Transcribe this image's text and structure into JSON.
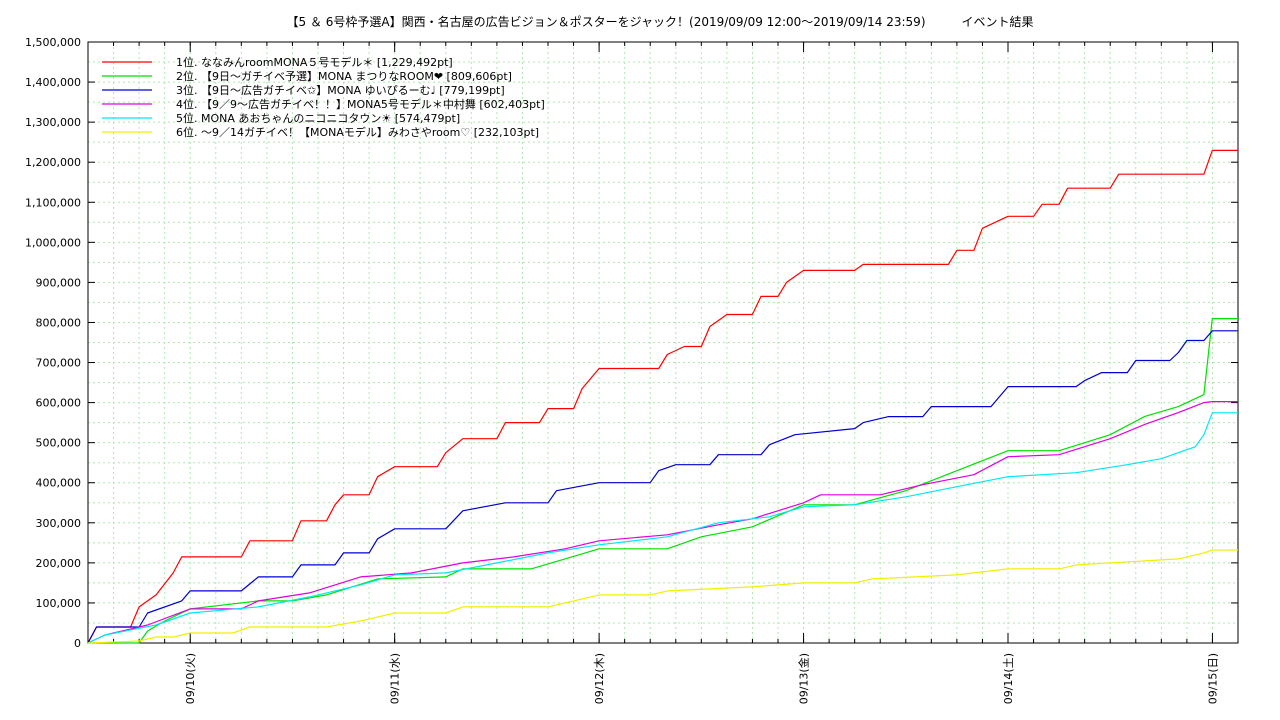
{
  "chart_data": {
    "type": "line",
    "title": "【5 ＆ 6号枠予選A】関西・名古屋の広告ビジョン＆ポスターをジャック！(2019/09/09 12:00〜2019/09/14 23:59)　　　イベント結果",
    "xlabel": "",
    "ylabel": "",
    "x_start": "2019/09/09 12:00",
    "x_end": "2019/09/15 03:00",
    "xtick_labels": [
      {
        "label": "09/10(火)",
        "x": "2019/09/10 00:00"
      },
      {
        "label": "09/11(水)",
        "x": "2019/09/11 00:00"
      },
      {
        "label": "09/12(木)",
        "x": "2019/09/12 00:00"
      },
      {
        "label": "09/13(金)",
        "x": "2019/09/13 00:00"
      },
      {
        "label": "09/14(土)",
        "x": "2019/09/14 00:00"
      },
      {
        "label": "09/15(日)",
        "x": "2019/09/15 00:00"
      }
    ],
    "ylim": [
      0,
      1500000
    ],
    "yticks": [
      0,
      100000,
      200000,
      300000,
      400000,
      500000,
      600000,
      700000,
      800000,
      900000,
      1000000,
      1100000,
      1200000,
      1300000,
      1400000,
      1500000
    ],
    "ytick_labels": [
      "0",
      "100,000",
      "200,000",
      "300,000",
      "400,000",
      "500,000",
      "600,000",
      "700,000",
      "800,000",
      "900,000",
      "1,000,000",
      "1,100,000",
      "1,200,000",
      "1,300,000",
      "1,400,000",
      "1,500,000"
    ],
    "grid": true,
    "legend_position": "top-left",
    "series": [
      {
        "name": "1位. ななみんroomMONA５号モデル＊ [1,229,492pt]",
        "color": "#ff0000",
        "points": [
          [
            "2019/09/09 12:00",
            0
          ],
          [
            "2019/09/09 13:00",
            40000
          ],
          [
            "2019/09/09 17:00",
            40000
          ],
          [
            "2019/09/09 18:00",
            90000
          ],
          [
            "2019/09/09 20:00",
            120000
          ],
          [
            "2019/09/09 22:00",
            175000
          ],
          [
            "2019/09/09 23:00",
            215000
          ],
          [
            "2019/09/10 06:00",
            215000
          ],
          [
            "2019/09/10 07:00",
            255000
          ],
          [
            "2019/09/10 12:00",
            255000
          ],
          [
            "2019/09/10 13:00",
            305000
          ],
          [
            "2019/09/10 16:00",
            305000
          ],
          [
            "2019/09/10 17:00",
            345000
          ],
          [
            "2019/09/10 18:00",
            370000
          ],
          [
            "2019/09/10 21:00",
            370000
          ],
          [
            "2019/09/10 22:00",
            415000
          ],
          [
            "2019/09/11 00:00",
            440000
          ],
          [
            "2019/09/11 05:00",
            440000
          ],
          [
            "2019/09/11 06:00",
            475000
          ],
          [
            "2019/09/11 08:00",
            510000
          ],
          [
            "2019/09/11 12:00",
            510000
          ],
          [
            "2019/09/11 13:00",
            550000
          ],
          [
            "2019/09/11 17:00",
            550000
          ],
          [
            "2019/09/11 18:00",
            585000
          ],
          [
            "2019/09/11 21:00",
            585000
          ],
          [
            "2019/09/11 22:00",
            635000
          ],
          [
            "2019/09/12 00:00",
            685000
          ],
          [
            "2019/09/12 07:00",
            685000
          ],
          [
            "2019/09/12 08:00",
            720000
          ],
          [
            "2019/09/12 10:00",
            740000
          ],
          [
            "2019/09/12 12:00",
            740000
          ],
          [
            "2019/09/12 13:00",
            790000
          ],
          [
            "2019/09/12 15:00",
            820000
          ],
          [
            "2019/09/12 18:00",
            820000
          ],
          [
            "2019/09/12 19:00",
            865000
          ],
          [
            "2019/09/12 21:00",
            865000
          ],
          [
            "2019/09/12 22:00",
            900000
          ],
          [
            "2019/09/13 00:00",
            930000
          ],
          [
            "2019/09/13 06:00",
            930000
          ],
          [
            "2019/09/13 07:00",
            945000
          ],
          [
            "2019/09/13 17:00",
            945000
          ],
          [
            "2019/09/13 18:00",
            980000
          ],
          [
            "2019/09/13 20:00",
            980000
          ],
          [
            "2019/09/13 21:00",
            1035000
          ],
          [
            "2019/09/14 00:00",
            1065000
          ],
          [
            "2019/09/14 03:00",
            1065000
          ],
          [
            "2019/09/14 04:00",
            1095000
          ],
          [
            "2019/09/14 06:00",
            1095000
          ],
          [
            "2019/09/14 07:00",
            1135000
          ],
          [
            "2019/09/14 12:00",
            1135000
          ],
          [
            "2019/09/14 13:00",
            1170000
          ],
          [
            "2019/09/14 23:00",
            1170000
          ],
          [
            "2019/09/14 23:59",
            1229492
          ],
          [
            "2019/09/15 03:00",
            1229492
          ]
        ]
      },
      {
        "name": "2位. 【9日〜ガチイベ予選】MONA まつりなROOM❤ [809,606pt]",
        "color": "#00e000",
        "points": [
          [
            "2019/09/09 12:00",
            0
          ],
          [
            "2019/09/09 18:00",
            0
          ],
          [
            "2019/09/09 19:00",
            30000
          ],
          [
            "2019/09/09 21:00",
            55000
          ],
          [
            "2019/09/10 00:00",
            85000
          ],
          [
            "2019/09/10 08:00",
            105000
          ],
          [
            "2019/09/10 12:00",
            105000
          ],
          [
            "2019/09/10 16:00",
            120000
          ],
          [
            "2019/09/10 22:00",
            160000
          ],
          [
            "2019/09/11 06:00",
            165000
          ],
          [
            "2019/09/11 08:00",
            185000
          ],
          [
            "2019/09/11 16:00",
            185000
          ],
          [
            "2019/09/11 20:00",
            210000
          ],
          [
            "2019/09/12 00:00",
            235000
          ],
          [
            "2019/09/12 08:00",
            235000
          ],
          [
            "2019/09/12 12:00",
            265000
          ],
          [
            "2019/09/12 18:00",
            290000
          ],
          [
            "2019/09/13 00:00",
            345000
          ],
          [
            "2019/09/13 06:00",
            345000
          ],
          [
            "2019/09/13 12:00",
            380000
          ],
          [
            "2019/09/13 18:00",
            430000
          ],
          [
            "2019/09/14 00:00",
            480000
          ],
          [
            "2019/09/14 06:00",
            480000
          ],
          [
            "2019/09/14 12:00",
            520000
          ],
          [
            "2019/09/14 16:00",
            565000
          ],
          [
            "2019/09/14 20:00",
            590000
          ],
          [
            "2019/09/14 23:00",
            620000
          ],
          [
            "2019/09/14 23:59",
            809606
          ],
          [
            "2019/09/15 03:00",
            809606
          ]
        ]
      },
      {
        "name": "3位. 【9日〜広告ガチイベ✩】MONA ゆいぴるーむ♩ [779,199pt]",
        "color": "#0000d0",
        "points": [
          [
            "2019/09/09 12:00",
            0
          ],
          [
            "2019/09/09 13:00",
            40000
          ],
          [
            "2019/09/09 18:00",
            40000
          ],
          [
            "2019/09/09 19:00",
            75000
          ],
          [
            "2019/09/09 23:00",
            105000
          ],
          [
            "2019/09/10 00:00",
            130000
          ],
          [
            "2019/09/10 06:00",
            130000
          ],
          [
            "2019/09/10 08:00",
            165000
          ],
          [
            "2019/09/10 12:00",
            165000
          ],
          [
            "2019/09/10 13:00",
            195000
          ],
          [
            "2019/09/10 17:00",
            195000
          ],
          [
            "2019/09/10 18:00",
            225000
          ],
          [
            "2019/09/10 21:00",
            225000
          ],
          [
            "2019/09/10 22:00",
            260000
          ],
          [
            "2019/09/11 00:00",
            285000
          ],
          [
            "2019/09/11 06:00",
            285000
          ],
          [
            "2019/09/11 08:00",
            330000
          ],
          [
            "2019/09/11 13:00",
            350000
          ],
          [
            "2019/09/11 18:00",
            350000
          ],
          [
            "2019/09/11 19:00",
            380000
          ],
          [
            "2019/09/12 00:00",
            400000
          ],
          [
            "2019/09/12 06:00",
            400000
          ],
          [
            "2019/09/12 07:00",
            430000
          ],
          [
            "2019/09/12 09:00",
            445000
          ],
          [
            "2019/09/12 13:00",
            445000
          ],
          [
            "2019/09/12 14:00",
            470000
          ],
          [
            "2019/09/12 19:00",
            470000
          ],
          [
            "2019/09/12 20:00",
            495000
          ],
          [
            "2019/09/12 23:00",
            520000
          ],
          [
            "2019/09/13 06:00",
            535000
          ],
          [
            "2019/09/13 07:00",
            550000
          ],
          [
            "2019/09/13 10:00",
            565000
          ],
          [
            "2019/09/13 14:00",
            565000
          ],
          [
            "2019/09/13 15:00",
            590000
          ],
          [
            "2019/09/13 22:00",
            590000
          ],
          [
            "2019/09/13 23:00",
            615000
          ],
          [
            "2019/09/14 00:00",
            640000
          ],
          [
            "2019/09/14 08:00",
            640000
          ],
          [
            "2019/09/14 09:00",
            655000
          ],
          [
            "2019/09/14 11:00",
            675000
          ],
          [
            "2019/09/14 14:00",
            675000
          ],
          [
            "2019/09/14 15:00",
            705000
          ],
          [
            "2019/09/14 19:00",
            705000
          ],
          [
            "2019/09/14 20:00",
            725000
          ],
          [
            "2019/09/14 21:00",
            755000
          ],
          [
            "2019/09/14 23:00",
            755000
          ],
          [
            "2019/09/14 23:59",
            779199
          ],
          [
            "2019/09/15 03:00",
            779199
          ]
        ]
      },
      {
        "name": "4位. 【9／9〜広告ガチイベ！！】MONA5号モデル＊中村舞 [602,403pt]",
        "color": "#e000e0",
        "points": [
          [
            "2019/09/09 12:00",
            0
          ],
          [
            "2019/09/09 14:00",
            20000
          ],
          [
            "2019/09/09 19:00",
            45000
          ],
          [
            "2019/09/10 00:00",
            85000
          ],
          [
            "2019/09/10 06:00",
            85000
          ],
          [
            "2019/09/10 08:00",
            105000
          ],
          [
            "2019/09/10 14:00",
            125000
          ],
          [
            "2019/09/10 20:00",
            165000
          ],
          [
            "2019/09/11 02:00",
            175000
          ],
          [
            "2019/09/11 08:00",
            200000
          ],
          [
            "2019/09/11 14:00",
            215000
          ],
          [
            "2019/09/11 20:00",
            235000
          ],
          [
            "2019/09/12 00:00",
            255000
          ],
          [
            "2019/09/12 08:00",
            270000
          ],
          [
            "2019/09/12 14:00",
            295000
          ],
          [
            "2019/09/12 18:00",
            310000
          ],
          [
            "2019/09/13 00:00",
            350000
          ],
          [
            "2019/09/13 02:00",
            370000
          ],
          [
            "2019/09/13 09:00",
            370000
          ],
          [
            "2019/09/13 14:00",
            395000
          ],
          [
            "2019/09/13 20:00",
            420000
          ],
          [
            "2019/09/14 00:00",
            465000
          ],
          [
            "2019/09/14 06:00",
            470000
          ],
          [
            "2019/09/14 12:00",
            510000
          ],
          [
            "2019/09/14 16:00",
            545000
          ],
          [
            "2019/09/14 20:00",
            575000
          ],
          [
            "2019/09/14 23:00",
            600000
          ],
          [
            "2019/09/14 23:59",
            602403
          ],
          [
            "2019/09/15 03:00",
            602403
          ]
        ]
      },
      {
        "name": "5位. MONA あおちゃんのニコニコタウン☀ [574,479pt]",
        "color": "#00e8f0",
        "points": [
          [
            "2019/09/09 12:00",
            0
          ],
          [
            "2019/09/09 14:00",
            20000
          ],
          [
            "2019/09/09 20:00",
            45000
          ],
          [
            "2019/09/10 00:00",
            75000
          ],
          [
            "2019/09/10 08:00",
            90000
          ],
          [
            "2019/09/10 14:00",
            115000
          ],
          [
            "2019/09/10 20:00",
            145000
          ],
          [
            "2019/09/11 00:00",
            170000
          ],
          [
            "2019/09/11 06:00",
            175000
          ],
          [
            "2019/09/11 12:00",
            200000
          ],
          [
            "2019/09/11 18:00",
            225000
          ],
          [
            "2019/09/12 00:00",
            245000
          ],
          [
            "2019/09/12 08:00",
            265000
          ],
          [
            "2019/09/12 14:00",
            300000
          ],
          [
            "2019/09/12 20:00",
            315000
          ],
          [
            "2019/09/13 00:00",
            340000
          ],
          [
            "2019/09/13 06:00",
            345000
          ],
          [
            "2019/09/13 12:00",
            365000
          ],
          [
            "2019/09/13 18:00",
            390000
          ],
          [
            "2019/09/14 00:00",
            415000
          ],
          [
            "2019/09/14 08:00",
            425000
          ],
          [
            "2019/09/14 14:00",
            445000
          ],
          [
            "2019/09/14 18:00",
            460000
          ],
          [
            "2019/09/14 22:00",
            490000
          ],
          [
            "2019/09/14 23:00",
            520000
          ],
          [
            "2019/09/14 23:59",
            574479
          ],
          [
            "2019/09/15 03:00",
            574479
          ]
        ]
      },
      {
        "name": "6位. 〜9／14ガチイベ！【MONAモデル】みわさやroom♡ [232,103pt]",
        "color": "#f0f000",
        "points": [
          [
            "2019/09/09 12:00",
            0
          ],
          [
            "2019/09/09 18:00",
            5000
          ],
          [
            "2019/09/09 20:00",
            15000
          ],
          [
            "2019/09/09 22:00",
            15000
          ],
          [
            "2019/09/10 00:00",
            25000
          ],
          [
            "2019/09/10 05:00",
            25000
          ],
          [
            "2019/09/10 07:00",
            40000
          ],
          [
            "2019/09/10 16:00",
            40000
          ],
          [
            "2019/09/10 20:00",
            55000
          ],
          [
            "2019/09/11 00:00",
            75000
          ],
          [
            "2019/09/11 06:00",
            75000
          ],
          [
            "2019/09/11 08:00",
            90000
          ],
          [
            "2019/09/11 18:00",
            90000
          ],
          [
            "2019/09/11 20:00",
            100000
          ],
          [
            "2019/09/12 00:00",
            120000
          ],
          [
            "2019/09/12 06:00",
            120000
          ],
          [
            "2019/09/12 08:00",
            130000
          ],
          [
            "2019/09/12 18:00",
            140000
          ],
          [
            "2019/09/13 00:00",
            150000
          ],
          [
            "2019/09/13 06:00",
            150000
          ],
          [
            "2019/09/13 08:00",
            160000
          ],
          [
            "2019/09/13 18:00",
            170000
          ],
          [
            "2019/09/14 00:00",
            185000
          ],
          [
            "2019/09/14 06:00",
            185000
          ],
          [
            "2019/09/14 08:00",
            195000
          ],
          [
            "2019/09/14 16:00",
            205000
          ],
          [
            "2019/09/14 20:00",
            210000
          ],
          [
            "2019/09/14 23:00",
            225000
          ],
          [
            "2019/09/14 23:59",
            232103
          ],
          [
            "2019/09/15 03:00",
            232103
          ]
        ]
      }
    ]
  }
}
